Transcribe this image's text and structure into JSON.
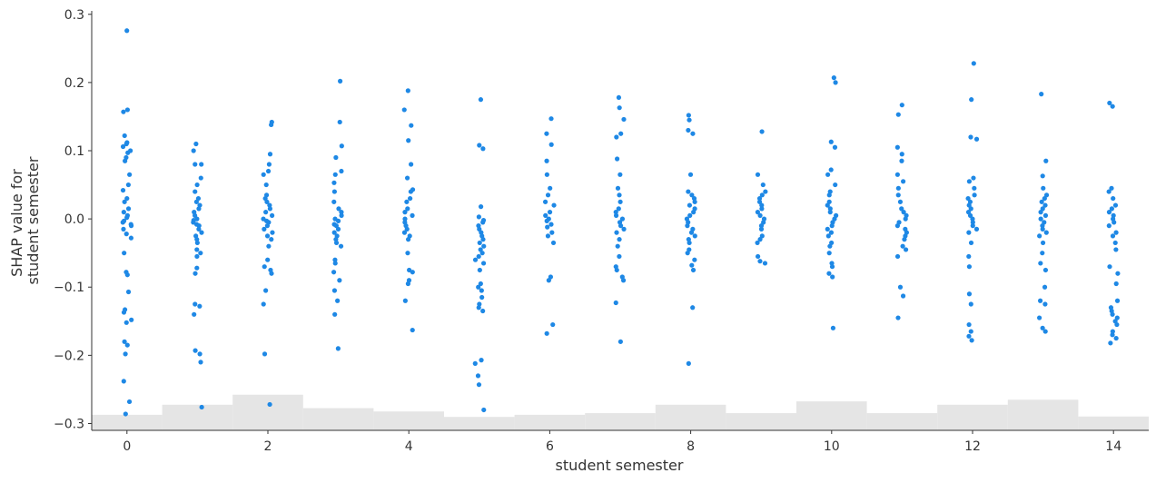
{
  "chart_data": {
    "type": "scatter",
    "title": "",
    "xlabel": "student semester",
    "ylabel_lines": [
      "SHAP value for",
      "student semester"
    ],
    "xlim": [
      -0.5,
      14.5
    ],
    "ylim": [
      -0.31,
      0.305
    ],
    "xticks": [
      0,
      2,
      4,
      6,
      8,
      10,
      12,
      14
    ],
    "xtick_labels": [
      "0",
      "2",
      "4",
      "6",
      "8",
      "10",
      "12",
      "14"
    ],
    "yticks": [
      -0.3,
      -0.2,
      -0.1,
      0.0,
      0.1,
      0.2,
      0.3
    ],
    "ytick_labels": [
      "−0.3",
      "−0.2",
      "−0.1",
      "0.0",
      "0.1",
      "0.2",
      "0.3"
    ],
    "grid": false,
    "point_color": "#1e88e5",
    "histogram_color": "#e5e5e5",
    "histogram_relative_heights": [
      0.037,
      0.061,
      0.085,
      0.053,
      0.045,
      0.032,
      0.037,
      0.041,
      0.061,
      0.041,
      0.069,
      0.041,
      0.061,
      0.073,
      0.033
    ],
    "points_by_semester": [
      [
        0.276,
        0.16,
        0.157,
        0.122,
        0.11,
        0.112,
        0.106,
        0.1,
        0.097,
        0.09,
        0.085,
        0.065,
        0.05,
        0.042,
        0.03,
        0.025,
        0.015,
        0.01,
        0.005,
        0.002,
        -0.003,
        -0.005,
        -0.008,
        -0.01,
        -0.015,
        -0.022,
        -0.028,
        -0.05,
        -0.078,
        -0.082,
        -0.107,
        -0.133,
        -0.137,
        -0.148,
        -0.152,
        -0.18,
        -0.185,
        -0.198,
        -0.238,
        -0.268,
        -0.286
      ],
      [
        0.11,
        0.1,
        0.08,
        0.08,
        0.06,
        0.05,
        0.04,
        0.03,
        0.025,
        0.02,
        0.015,
        0.01,
        0.005,
        0.0,
        -0.002,
        -0.005,
        -0.008,
        -0.01,
        -0.015,
        -0.02,
        -0.025,
        -0.03,
        -0.035,
        -0.045,
        -0.05,
        -0.055,
        -0.072,
        -0.08,
        -0.125,
        -0.128,
        -0.14,
        -0.193,
        -0.198,
        -0.21,
        -0.276
      ],
      [
        0.142,
        0.138,
        0.095,
        0.08,
        0.07,
        0.065,
        0.05,
        0.035,
        0.03,
        0.025,
        0.02,
        0.015,
        0.01,
        0.005,
        0.0,
        -0.003,
        -0.005,
        -0.01,
        -0.015,
        -0.02,
        -0.025,
        -0.03,
        -0.04,
        -0.06,
        -0.07,
        -0.075,
        -0.08,
        -0.105,
        -0.125,
        -0.198,
        -0.272
      ],
      [
        0.202,
        0.142,
        0.107,
        0.09,
        0.07,
        0.065,
        0.053,
        0.04,
        0.025,
        0.015,
        0.01,
        0.005,
        0.0,
        -0.003,
        -0.008,
        -0.01,
        -0.015,
        -0.02,
        -0.025,
        -0.03,
        -0.035,
        -0.04,
        -0.06,
        -0.065,
        -0.078,
        -0.09,
        -0.105,
        -0.12,
        -0.14,
        -0.19
      ],
      [
        0.188,
        0.16,
        0.137,
        0.115,
        0.08,
        0.06,
        0.043,
        0.04,
        0.03,
        0.025,
        0.015,
        0.01,
        0.005,
        0.0,
        -0.005,
        -0.01,
        -0.015,
        -0.02,
        -0.025,
        -0.03,
        -0.05,
        -0.075,
        -0.078,
        -0.09,
        -0.095,
        -0.12,
        -0.163
      ],
      [
        0.175,
        0.108,
        0.103,
        0.018,
        0.003,
        -0.002,
        -0.005,
        -0.01,
        -0.015,
        -0.02,
        -0.025,
        -0.03,
        -0.035,
        -0.04,
        -0.045,
        -0.05,
        -0.055,
        -0.06,
        -0.065,
        -0.075,
        -0.095,
        -0.1,
        -0.105,
        -0.115,
        -0.125,
        -0.13,
        -0.135,
        -0.207,
        -0.212,
        -0.23,
        -0.243,
        -0.28
      ],
      [
        0.147,
        0.125,
        0.109,
        0.085,
        0.065,
        0.045,
        0.035,
        0.025,
        0.02,
        0.01,
        0.005,
        0.0,
        -0.003,
        -0.008,
        -0.012,
        -0.02,
        -0.025,
        -0.035,
        -0.085,
        -0.09,
        -0.155,
        -0.168
      ],
      [
        0.178,
        0.163,
        0.146,
        0.125,
        0.12,
        0.088,
        0.065,
        0.045,
        0.035,
        0.025,
        0.015,
        0.01,
        0.005,
        0.0,
        -0.005,
        -0.01,
        -0.015,
        -0.02,
        -0.03,
        -0.04,
        -0.055,
        -0.07,
        -0.075,
        -0.085,
        -0.09,
        -0.123,
        -0.18
      ],
      [
        0.152,
        0.145,
        0.13,
        0.125,
        0.065,
        0.04,
        0.035,
        0.03,
        0.025,
        0.02,
        0.015,
        0.01,
        0.005,
        0.0,
        -0.005,
        -0.01,
        -0.015,
        -0.02,
        -0.025,
        -0.03,
        -0.035,
        -0.045,
        -0.05,
        -0.06,
        -0.068,
        -0.075,
        -0.13,
        -0.212
      ],
      [
        0.128,
        0.065,
        0.05,
        0.04,
        0.035,
        0.03,
        0.025,
        0.02,
        0.015,
        0.01,
        0.005,
        0.0,
        -0.005,
        -0.01,
        -0.015,
        -0.025,
        -0.03,
        -0.035,
        -0.055,
        -0.062,
        -0.065
      ],
      [
        0.207,
        0.2,
        0.113,
        0.105,
        0.072,
        0.065,
        0.05,
        0.04,
        0.035,
        0.025,
        0.02,
        0.015,
        0.01,
        0.005,
        0.0,
        -0.005,
        -0.01,
        -0.015,
        -0.02,
        -0.025,
        -0.035,
        -0.04,
        -0.05,
        -0.065,
        -0.07,
        -0.08,
        -0.085,
        -0.16
      ],
      [
        0.167,
        0.153,
        0.105,
        0.095,
        0.085,
        0.065,
        0.055,
        0.045,
        0.035,
        0.025,
        0.015,
        0.01,
        0.005,
        0.0,
        -0.005,
        -0.01,
        -0.015,
        -0.02,
        -0.025,
        -0.03,
        -0.04,
        -0.045,
        -0.055,
        -0.1,
        -0.113,
        -0.145
      ],
      [
        0.228,
        0.175,
        0.12,
        0.117,
        0.06,
        0.055,
        0.045,
        0.035,
        0.03,
        0.025,
        0.02,
        0.015,
        0.01,
        0.005,
        0.0,
        -0.005,
        -0.01,
        -0.015,
        -0.02,
        -0.035,
        -0.055,
        -0.07,
        -0.11,
        -0.125,
        -0.155,
        -0.165,
        -0.172,
        -0.178
      ],
      [
        0.183,
        0.085,
        0.063,
        0.045,
        0.035,
        0.03,
        0.025,
        0.02,
        0.015,
        0.01,
        0.005,
        0.0,
        -0.005,
        -0.01,
        -0.015,
        -0.02,
        -0.025,
        -0.035,
        -0.05,
        -0.065,
        -0.075,
        -0.1,
        -0.12,
        -0.125,
        -0.145,
        -0.16,
        -0.165
      ],
      [
        0.17,
        0.165,
        0.045,
        0.04,
        0.03,
        0.02,
        0.015,
        0.01,
        0.005,
        0.0,
        -0.005,
        -0.01,
        -0.02,
        -0.025,
        -0.035,
        -0.045,
        -0.07,
        -0.08,
        -0.095,
        -0.12,
        -0.13,
        -0.135,
        -0.14,
        -0.145,
        -0.15,
        -0.155,
        -0.165,
        -0.17,
        -0.175,
        -0.182
      ]
    ]
  }
}
